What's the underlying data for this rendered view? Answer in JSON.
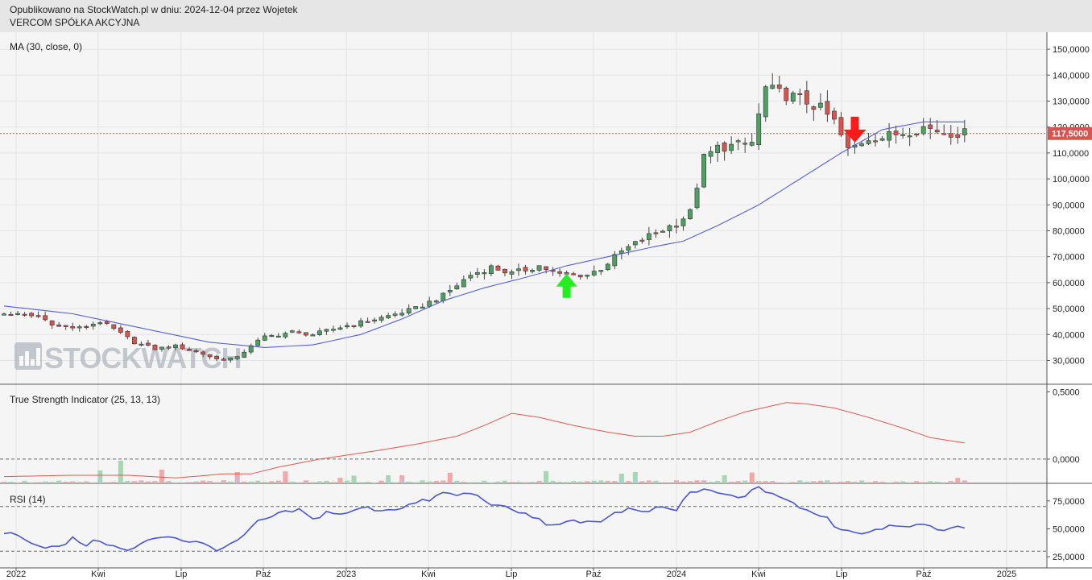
{
  "header": {
    "line1": "Opublikowano na StockWatch.pl w dniu: 2024-12-04 przez Wojetek",
    "line2": "VERCOM SPÓŁKA AKCYJNA"
  },
  "watermark": "STOCKWATCH",
  "colors": {
    "up": "#4f9e62",
    "down": "#d9544f",
    "ma": "#5560d9",
    "tsi": "#e0584f",
    "rsi": "#4a55d6",
    "last_price": "#d9544f",
    "arrow_up": "#22ee22",
    "arrow_down": "#ff1a1a"
  },
  "x_axis": {
    "labels": [
      "2022",
      "Kwi",
      "Lip",
      "Paź",
      "2023",
      "Kwi",
      "Lip",
      "Paź",
      "2024",
      "Kwi",
      "Lip",
      "Paź",
      "2025"
    ]
  },
  "chart_data": [
    {
      "type": "candlestick",
      "title": "MA (30, close, 0)",
      "indicator_label": "MA (30, close, 0)",
      "yticks": [
        "30,0000",
        "40,0000",
        "50,0000",
        "60,0000",
        "70,0000",
        "80,0000",
        "90,0000",
        "100,0000",
        "110,0000",
        "120,0000",
        "130,0000",
        "140,0000",
        "150,0000"
      ],
      "ylim": [
        23000,
        155000
      ],
      "last_price": 117500,
      "last_price_label": "117,5000",
      "price_anchors": [
        [
          0,
          48000
        ],
        [
          5,
          47000
        ],
        [
          8,
          43000
        ],
        [
          11,
          42500
        ],
        [
          14,
          45000
        ],
        [
          16,
          42000
        ],
        [
          19,
          37000
        ],
        [
          22,
          34500
        ],
        [
          25,
          35500
        ],
        [
          28,
          33500
        ],
        [
          31,
          30500
        ],
        [
          34,
          31000
        ],
        [
          36,
          36000
        ],
        [
          38,
          39000
        ],
        [
          42,
          41000
        ],
        [
          45,
          40000
        ],
        [
          50,
          43500
        ],
        [
          55,
          46500
        ],
        [
          60,
          50000
        ],
        [
          64,
          55000
        ],
        [
          68,
          63000
        ],
        [
          71,
          66000
        ],
        [
          74,
          63500
        ],
        [
          78,
          66500
        ],
        [
          81,
          63000
        ],
        [
          85,
          63000
        ],
        [
          87,
          65500
        ],
        [
          90,
          72000
        ],
        [
          94,
          78000
        ],
        [
          98,
          83000
        ],
        [
          100,
          87000
        ],
        [
          102,
          108000
        ],
        [
          104,
          112000
        ],
        [
          107,
          113000
        ],
        [
          109,
          114000
        ],
        [
          111,
          135000
        ],
        [
          113,
          133000
        ],
        [
          116,
          131000
        ],
        [
          119,
          127000
        ],
        [
          121,
          122000
        ],
        [
          123,
          111000
        ],
        [
          126,
          116000
        ],
        [
          128,
          116000
        ],
        [
          131,
          118000
        ],
        [
          134,
          120000
        ],
        [
          137,
          118000
        ],
        [
          140,
          117500
        ]
      ],
      "ma_anchors": [
        [
          0,
          51000
        ],
        [
          10,
          48000
        ],
        [
          20,
          42500
        ],
        [
          30,
          37000
        ],
        [
          38,
          35000
        ],
        [
          45,
          36000
        ],
        [
          52,
          40000
        ],
        [
          58,
          46000
        ],
        [
          64,
          53000
        ],
        [
          70,
          58000
        ],
        [
          76,
          62000
        ],
        [
          82,
          66500
        ],
        [
          88,
          70000
        ],
        [
          95,
          74000
        ],
        [
          99,
          76000
        ],
        [
          104,
          82000
        ],
        [
          110,
          90000
        ],
        [
          116,
          100000
        ],
        [
          122,
          110000
        ],
        [
          128,
          119000
        ],
        [
          134,
          122000
        ],
        [
          140,
          122000
        ]
      ],
      "markers": [
        {
          "type": "arrow-up",
          "x_week": 82,
          "price": 58500
        },
        {
          "type": "arrow-down",
          "x_week": 124,
          "price": 119000
        }
      ]
    },
    {
      "type": "line",
      "title": "True Strength Indicator (25, 13, 13)",
      "yticks": [
        "0,0000",
        "0,5000"
      ],
      "ylim": [
        -0.18,
        0.55
      ],
      "series_anchors": [
        [
          0,
          -0.13
        ],
        [
          10,
          -0.12
        ],
        [
          18,
          -0.12
        ],
        [
          25,
          -0.14
        ],
        [
          32,
          -0.11
        ],
        [
          36,
          -0.11
        ],
        [
          40,
          -0.06
        ],
        [
          46,
          0.0
        ],
        [
          54,
          0.06
        ],
        [
          60,
          0.11
        ],
        [
          66,
          0.17
        ],
        [
          70,
          0.25
        ],
        [
          74,
          0.34
        ],
        [
          78,
          0.31
        ],
        [
          83,
          0.25
        ],
        [
          88,
          0.2
        ],
        [
          92,
          0.17
        ],
        [
          96,
          0.17
        ],
        [
          100,
          0.2
        ],
        [
          104,
          0.28
        ],
        [
          108,
          0.35
        ],
        [
          114,
          0.42
        ],
        [
          117,
          0.41
        ],
        [
          121,
          0.38
        ],
        [
          126,
          0.31
        ],
        [
          131,
          0.23
        ],
        [
          135,
          0.16
        ],
        [
          140,
          0.12
        ]
      ]
    },
    {
      "type": "line",
      "title": "RSI (14)",
      "yticks": [
        "25,0000",
        "50,0000",
        "75,0000"
      ],
      "ylim": [
        15,
        90
      ],
      "reference_lines": [
        30,
        70
      ],
      "series_anchors": [
        [
          0,
          47
        ],
        [
          3,
          42
        ],
        [
          5,
          35
        ],
        [
          8,
          33
        ],
        [
          10,
          41
        ],
        [
          12,
          36
        ],
        [
          14,
          40
        ],
        [
          16,
          34
        ],
        [
          18,
          30
        ],
        [
          20,
          36
        ],
        [
          22,
          42
        ],
        [
          24,
          44
        ],
        [
          26,
          40
        ],
        [
          28,
          38
        ],
        [
          31,
          32
        ],
        [
          33,
          35
        ],
        [
          35,
          44
        ],
        [
          37,
          56
        ],
        [
          40,
          63
        ],
        [
          43,
          67
        ],
        [
          45,
          58
        ],
        [
          47,
          65
        ],
        [
          50,
          63
        ],
        [
          52,
          69
        ],
        [
          55,
          67
        ],
        [
          57,
          68
        ],
        [
          60,
          73
        ],
        [
          62,
          76
        ],
        [
          64,
          82
        ],
        [
          66,
          80
        ],
        [
          68,
          82
        ],
        [
          70,
          76
        ],
        [
          72,
          70
        ],
        [
          74,
          67
        ],
        [
          76,
          63
        ],
        [
          78,
          58
        ],
        [
          80,
          52
        ],
        [
          82,
          58
        ],
        [
          84,
          54
        ],
        [
          87,
          58
        ],
        [
          89,
          64
        ],
        [
          91,
          68
        ],
        [
          93,
          64
        ],
        [
          95,
          68
        ],
        [
          98,
          67
        ],
        [
          100,
          83
        ],
        [
          103,
          84
        ],
        [
          105,
          80
        ],
        [
          107,
          78
        ],
        [
          110,
          86
        ],
        [
          112,
          82
        ],
        [
          114,
          76
        ],
        [
          116,
          68
        ],
        [
          118,
          65
        ],
        [
          120,
          60
        ],
        [
          121,
          52
        ],
        [
          123,
          49
        ],
        [
          125,
          46
        ],
        [
          127,
          50
        ],
        [
          130,
          54
        ],
        [
          133,
          53
        ],
        [
          136,
          50
        ],
        [
          140,
          51
        ]
      ]
    }
  ]
}
